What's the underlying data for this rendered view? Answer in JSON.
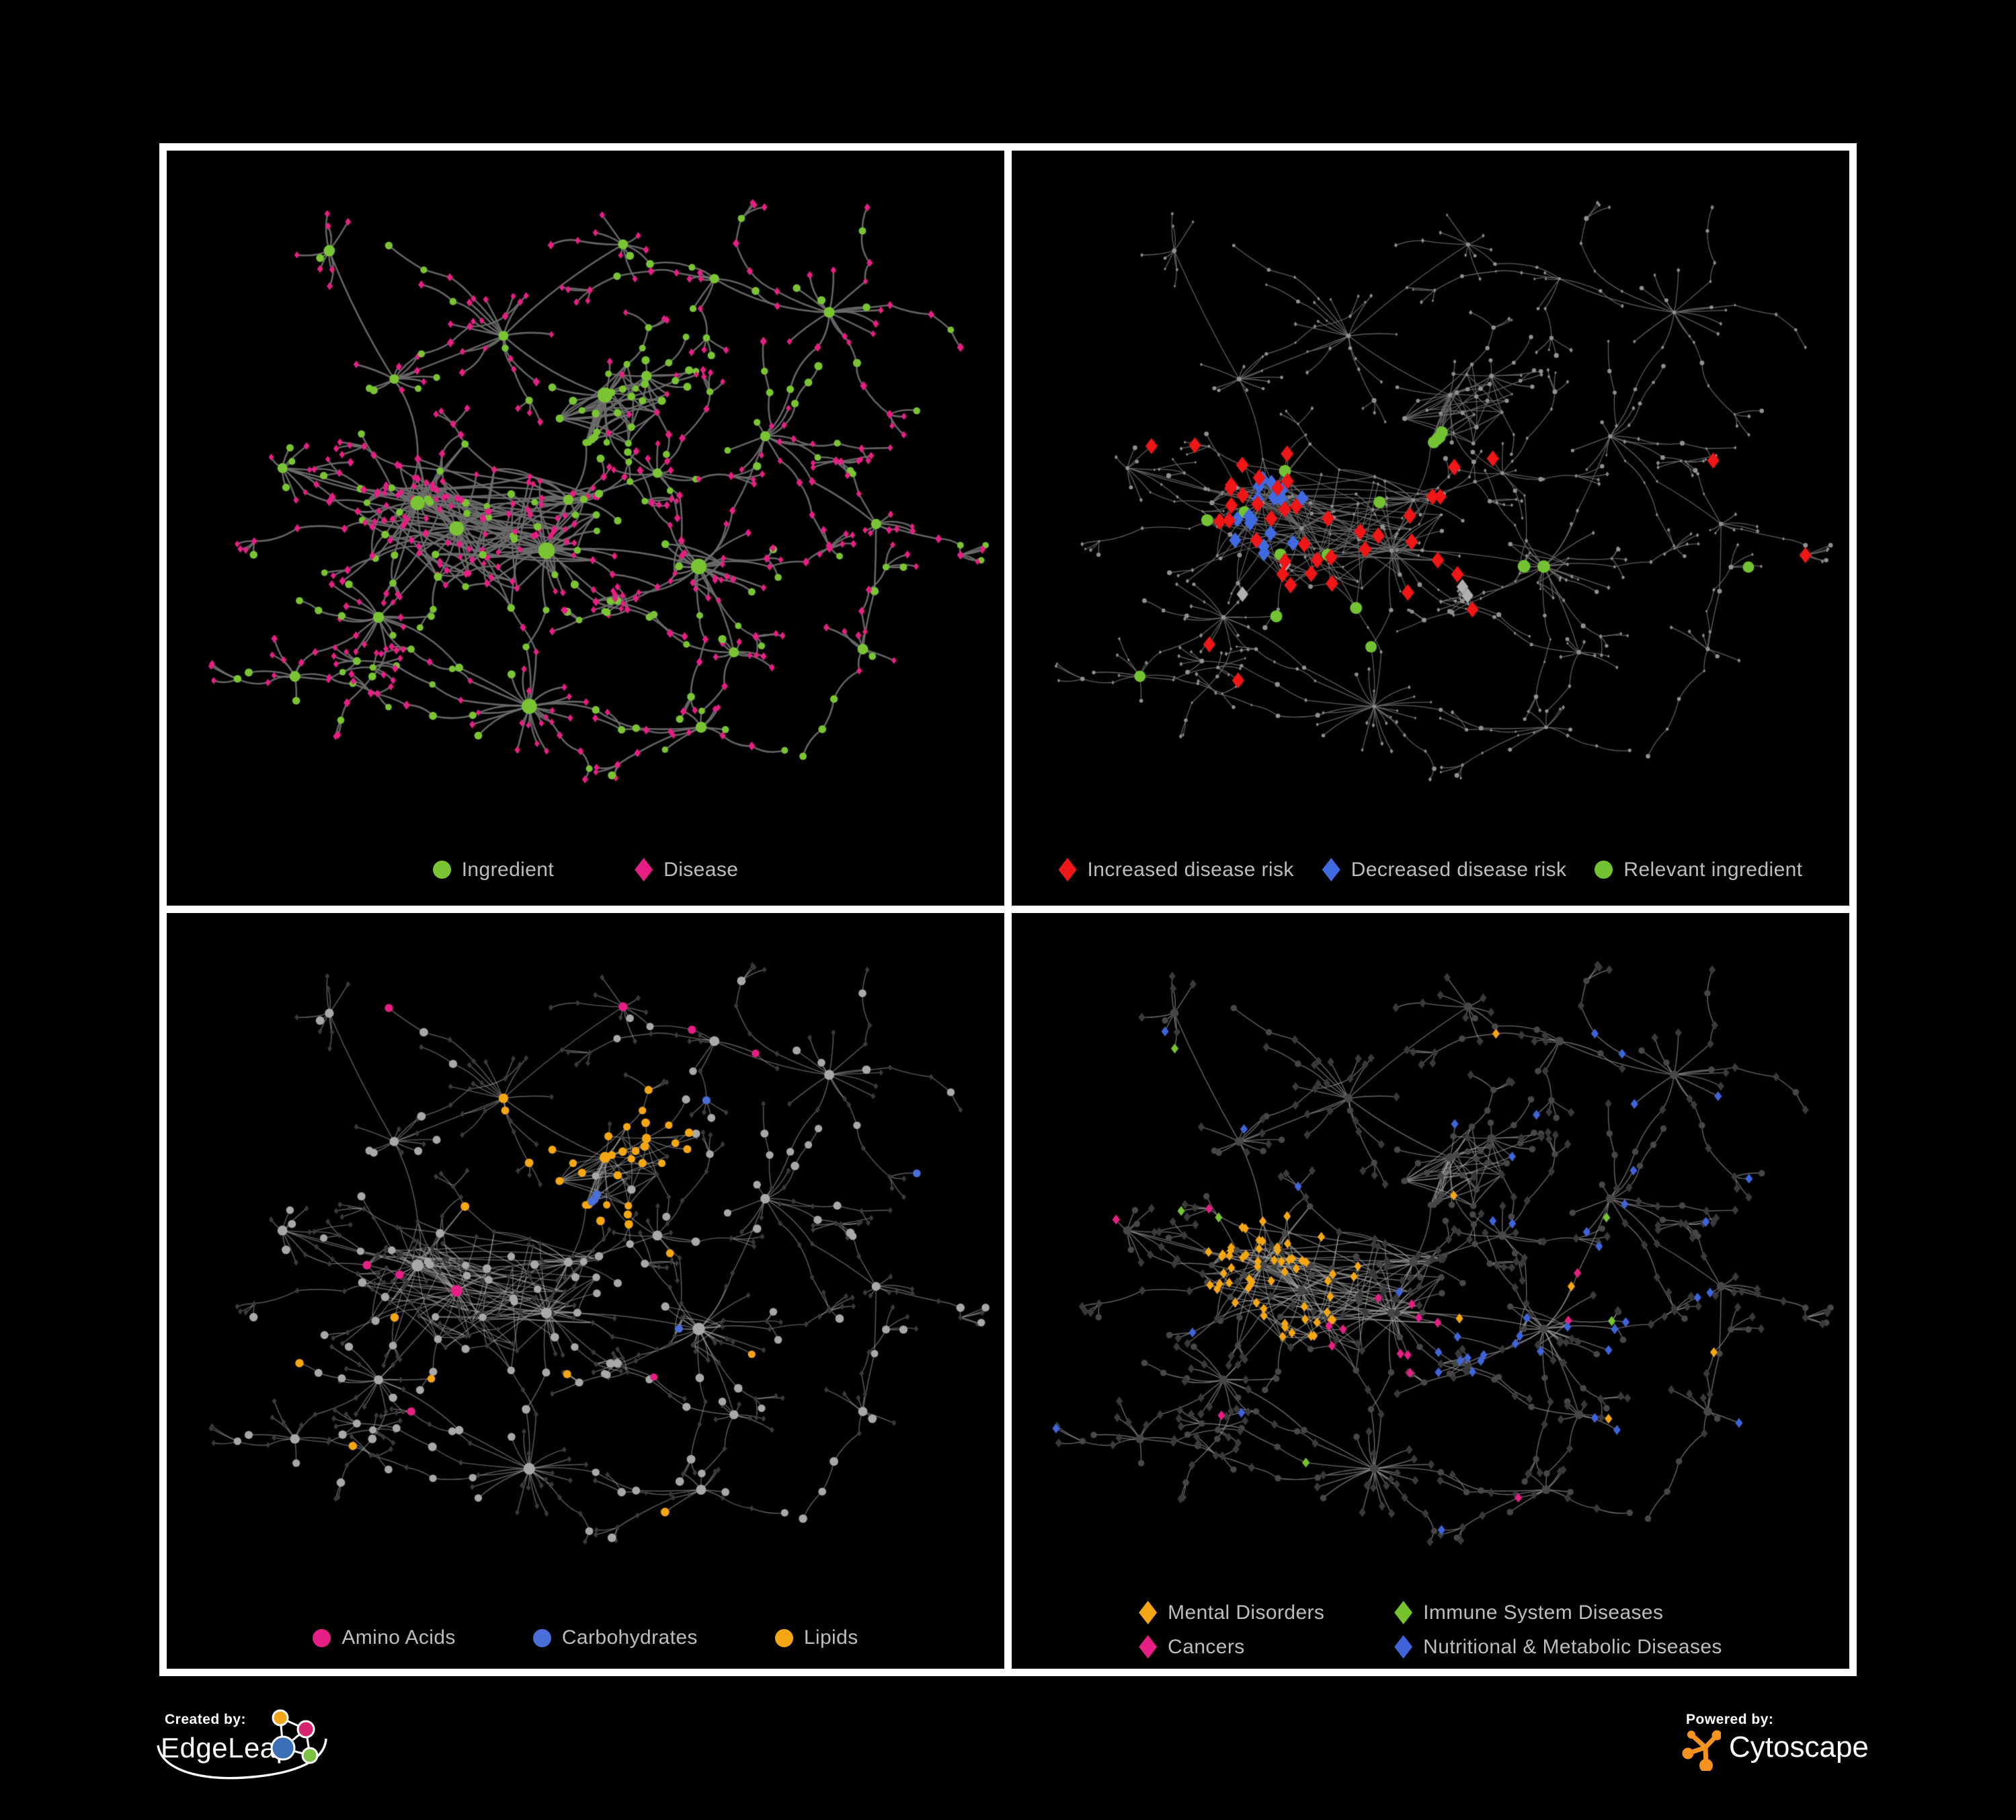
{
  "figure": {
    "background": "#000000",
    "frame_color": "#ffffff"
  },
  "footer": {
    "created_by_label": "Created by:",
    "edgeleap_name": "EdgeLeap",
    "powered_by_label": "Powered by:",
    "cytoscape_name": "Cytoscape",
    "cytoscape_orange": "#f6921e",
    "edgeleap_colors": {
      "orange": "#f2a51b",
      "pink": "#d6246e",
      "blue": "#3b6fb6",
      "green": "#7cc142"
    }
  },
  "network": {
    "seed": 1337,
    "pad": {
      "l": 42,
      "r": 42,
      "t": 28,
      "drawH": 945
    },
    "hubs": [
      [
        0.335,
        0.565,
        24,
        0.075,
        0.22,
        1
      ],
      [
        0.285,
        0.525,
        15,
        0.058,
        0.22,
        1
      ],
      [
        0.45,
        0.6,
        22,
        0.07,
        0.22,
        1
      ],
      [
        0.478,
        0.52,
        14,
        0.055,
        0.3,
        0
      ],
      [
        0.525,
        0.355,
        20,
        0.065,
        0.55,
        1
      ],
      [
        0.578,
        0.325,
        11,
        0.05,
        0.5,
        0
      ],
      [
        0.395,
        0.262,
        13,
        0.058,
        0.4,
        0
      ],
      [
        0.645,
        0.625,
        24,
        0.072,
        0.2,
        1
      ],
      [
        0.428,
        0.845,
        24,
        0.075,
        0.15,
        1
      ],
      [
        0.235,
        0.705,
        14,
        0.058,
        0.22,
        0
      ],
      [
        0.112,
        0.47,
        9,
        0.048,
        0.2,
        0
      ],
      [
        0.73,
        0.42,
        11,
        0.055,
        0.22,
        0
      ],
      [
        0.812,
        0.225,
        14,
        0.06,
        0.2,
        0
      ],
      [
        0.255,
        0.33,
        11,
        0.055,
        0.3,
        0
      ],
      [
        0.548,
        0.118,
        8,
        0.048,
        0.25,
        0
      ],
      [
        0.872,
        0.558,
        8,
        0.048,
        0.2,
        0
      ],
      [
        0.648,
        0.878,
        9,
        0.05,
        0.18,
        0
      ],
      [
        0.128,
        0.798,
        9,
        0.05,
        0.2,
        0
      ],
      [
        0.855,
        0.755,
        7,
        0.045,
        0.2,
        0
      ],
      [
        0.172,
        0.128,
        8,
        0.05,
        0.25,
        0
      ],
      [
        0.665,
        0.172,
        7,
        0.045,
        0.25,
        0
      ],
      [
        0.592,
        0.478,
        9,
        0.05,
        0.3,
        0
      ],
      [
        0.69,
        0.76,
        8,
        0.048,
        0.2,
        0
      ]
    ],
    "links": [
      [
        0,
        1
      ],
      [
        0,
        2
      ],
      [
        2,
        3
      ],
      [
        3,
        4
      ],
      [
        4,
        5
      ],
      [
        4,
        6
      ],
      [
        6,
        13
      ],
      [
        6,
        14
      ],
      [
        0,
        13
      ],
      [
        0,
        10
      ],
      [
        0,
        9
      ],
      [
        9,
        17
      ],
      [
        2,
        8
      ],
      [
        8,
        16
      ],
      [
        2,
        7
      ],
      [
        7,
        11
      ],
      [
        11,
        12
      ],
      [
        11,
        15
      ],
      [
        7,
        22
      ],
      [
        22,
        16
      ],
      [
        13,
        19
      ],
      [
        14,
        20
      ],
      [
        20,
        12
      ],
      [
        3,
        21
      ],
      [
        21,
        7
      ],
      [
        1,
        10
      ],
      [
        8,
        9
      ],
      [
        15,
        18
      ]
    ],
    "dense": [
      [
        0.37,
        0.56,
        0.155,
        85
      ],
      [
        0.525,
        0.355,
        0.085,
        30
      ],
      [
        0.645,
        0.625,
        0.06,
        12
      ]
    ],
    "chainProb": 0.24,
    "fanProb": 0.5
  },
  "panels": [
    {
      "kind": "p1",
      "legend": [
        {
          "shape": "circle",
          "color": "#7ac433",
          "label": "Ingredient"
        },
        {
          "shape": "diamond",
          "color": "#e61f84",
          "label": "Disease"
        }
      ],
      "style": {
        "seed": 11,
        "circle": "#7ac433",
        "diamond": "#e61f84",
        "edgeColor": "#6d6d6d",
        "edgeWidth": 2.6,
        "edgeAlpha": 0.92,
        "bow": 1.0
      }
    },
    {
      "kind": "p2",
      "legend": [
        {
          "shape": "diamond",
          "color": "#ee1616",
          "label": "Increased disease risk"
        },
        {
          "shape": "diamond",
          "color": "#3f6ae0",
          "label": "Decreased disease risk"
        },
        {
          "shape": "circle",
          "color": "#72c232",
          "label": "Relevant ingredient"
        }
      ],
      "style": {
        "seed": 22,
        "baseCircle": "#909090",
        "baseDiamond": "#8a8a8a",
        "red": "#ee1616",
        "blue": "#3f6ae0",
        "gray": "#b0b0b0",
        "green": "#72c232",
        "coreFocus": [
          0.4,
          0.55
        ],
        "blueFocus": [
          0.3,
          0.54
        ],
        "bluePair": [
          0.8,
          0.37
        ],
        "greenBlob": [
          0.645,
          0.625
        ],
        "edgeColor": "#686868",
        "edgeWidth": 1.3,
        "edgeAlpha": 0.9,
        "bow": 0.6
      }
    },
    {
      "kind": "p3",
      "legend": [
        {
          "shape": "circle",
          "color": "#e61f84",
          "label": "Amino Acids"
        },
        {
          "shape": "circle",
          "color": "#4a6fd8",
          "label": "Carbohydrates"
        },
        {
          "shape": "circle",
          "color": "#f4a713",
          "label": "Lipids"
        }
      ],
      "style": {
        "seed": 33,
        "circleBase": "#a8a8a8",
        "diamond": "#3a3a3a",
        "lipid": "#f4a713",
        "carb": "#4a6fd8",
        "amino": "#e61f84",
        "lipidFocus": [
          0.5,
          0.35
        ],
        "carbFocus": [
          0.47,
          0.43
        ],
        "aminoFocus": [
          0.68,
          0.78
        ],
        "edgeColor": "#aaaaaa",
        "edgeWidth": 1.45,
        "edgeAlpha": 0.55,
        "bow": 0.6
      }
    },
    {
      "kind": "p4",
      "legend": [
        {
          "shape": "diamond",
          "color": "#f4a713",
          "label": "Mental Disorders"
        },
        {
          "shape": "diamond",
          "color": "#76c42d",
          "label": "Immune System Diseases"
        },
        {
          "shape": "diamond",
          "color": "#e61f84",
          "label": "Cancers"
        },
        {
          "shape": "diamond",
          "color": "#3f63d8",
          "label": "Nutritional & Metabolic Diseases"
        }
      ],
      "style": {
        "seed": 44,
        "circle": "#474747",
        "diamond": "#3a3a3a",
        "mental": "#f4a713",
        "cancer": "#e61f84",
        "immune": "#76c42d",
        "nutri": "#3f63d8",
        "mentalFocus": [
          0.3,
          0.54
        ],
        "cancerFocus": [
          0.445,
          0.615
        ],
        "nutriFocus": [
          0.565,
          0.655
        ],
        "edgeColor": "#a0a0a0",
        "edgeWidth": 1.4,
        "edgeAlpha": 0.65,
        "bow": 0.6
      }
    }
  ],
  "chart_data": {
    "type": "network",
    "layout_shared_across_panels": true,
    "panel_legends": [
      [
        "Ingredient",
        "Disease"
      ],
      [
        "Increased disease risk",
        "Decreased disease risk",
        "Relevant ingredient"
      ],
      [
        "Amino Acids",
        "Carbohydrates",
        "Lipids"
      ],
      [
        "Mental Disorders",
        "Immune System Diseases",
        "Cancers",
        "Nutritional & Metabolic Diseases"
      ]
    ]
  }
}
